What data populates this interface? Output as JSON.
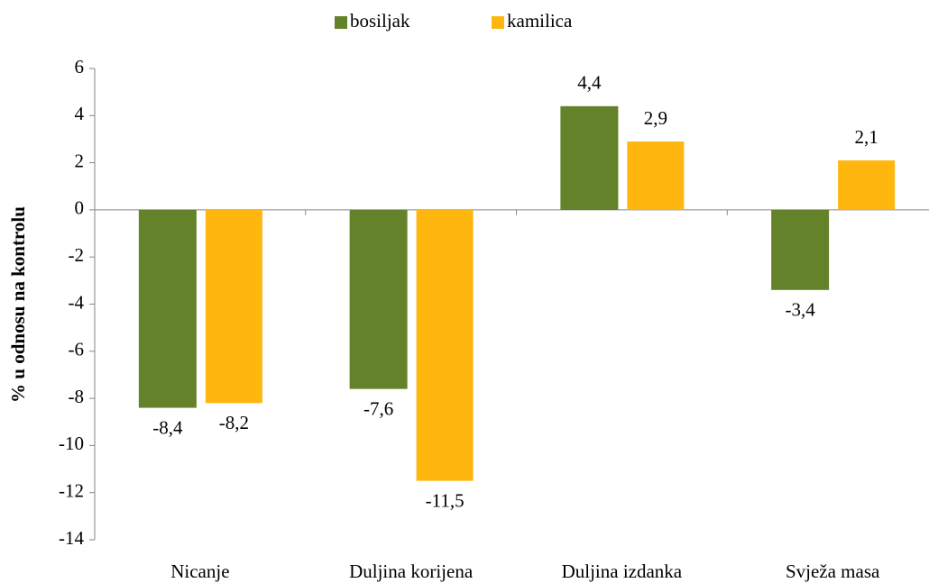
{
  "chart_data": {
    "type": "bar",
    "y_label": "% u odnosu na kontrolu",
    "categories": [
      "Nicanje",
      "Duljina korijena",
      "Duljina izdanka",
      "Svježa masa"
    ],
    "series": [
      {
        "name": "bosiljak",
        "color": "#638229",
        "values": [
          -8.4,
          -7.6,
          4.4,
          -3.4
        ],
        "value_labels": [
          "-8,4",
          "-7,6",
          "4,4",
          "-3,4"
        ]
      },
      {
        "name": "kamilica",
        "color": "#ffb60f",
        "values": [
          -8.2,
          -11.5,
          2.9,
          2.1
        ],
        "value_labels": [
          "-8,2",
          "-11,5",
          "2,9",
          "2,1"
        ]
      }
    ],
    "ylim": [
      -14,
      6
    ],
    "yticks": [
      -14,
      -12,
      -10,
      -8,
      -6,
      -4,
      -2,
      0,
      2,
      4,
      6
    ],
    "grid": false,
    "legend": "top"
  }
}
